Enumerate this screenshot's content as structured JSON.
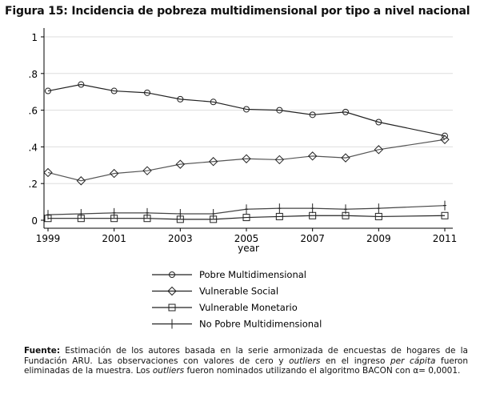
{
  "chart_data": {
    "type": "line",
    "title": "Figura  15: Incidencia de pobreza multidimensional por tipo a nivel nacional",
    "xlabel": "year",
    "ylabel": "",
    "x": [
      1999,
      2000,
      2001,
      2002,
      2003,
      2004,
      2005,
      2006,
      2007,
      2008,
      2009,
      2011
    ],
    "xticks": [
      1999,
      2001,
      2003,
      2005,
      2007,
      2009,
      2011
    ],
    "yticks": [
      0,
      0.2,
      0.4,
      0.6,
      0.8,
      1
    ],
    "ytick_labels": [
      "0",
      ".2",
      ".4",
      ".6",
      ".8",
      "1"
    ],
    "ylim": [
      0,
      1
    ],
    "xlim": [
      1999,
      2011
    ],
    "grid": true,
    "legend_position": "bottom",
    "series": [
      {
        "name": "Pobre Multidimensional",
        "marker": "circle",
        "values": [
          0.705,
          0.74,
          0.705,
          0.695,
          0.66,
          0.645,
          0.605,
          0.6,
          0.575,
          0.59,
          0.535,
          0.46
        ]
      },
      {
        "name": "Vulnerable Social",
        "marker": "diamond",
        "values": [
          0.26,
          0.215,
          0.255,
          0.27,
          0.305,
          0.32,
          0.335,
          0.33,
          0.35,
          0.34,
          0.385,
          0.44
        ]
      },
      {
        "name": "Vulnerable Monetario",
        "marker": "square",
        "values": [
          0.01,
          0.01,
          0.01,
          0.01,
          0.005,
          0.005,
          0.015,
          0.02,
          0.025,
          0.025,
          0.02,
          0.025
        ]
      },
      {
        "name": "No Pobre Multidimensional",
        "marker": "plus",
        "values": [
          0.03,
          0.035,
          0.04,
          0.04,
          0.035,
          0.035,
          0.06,
          0.065,
          0.065,
          0.06,
          0.065,
          0.08
        ]
      }
    ]
  },
  "note": {
    "label": "Fuente:",
    "text1": " Estimación de los autores basada en la serie armonizada de encuestas de hogares de la Fundación ARU. Las observaciones con valores de cero y ",
    "em1": "outliers",
    "text2": " en el ingreso ",
    "em2": "per cápita",
    "text3": " fueron eliminadas de la muestra. Los ",
    "em3": "outliers",
    "text4": " fueron nominados utilizando  el algoritmo BACON con α= 0,0001."
  }
}
